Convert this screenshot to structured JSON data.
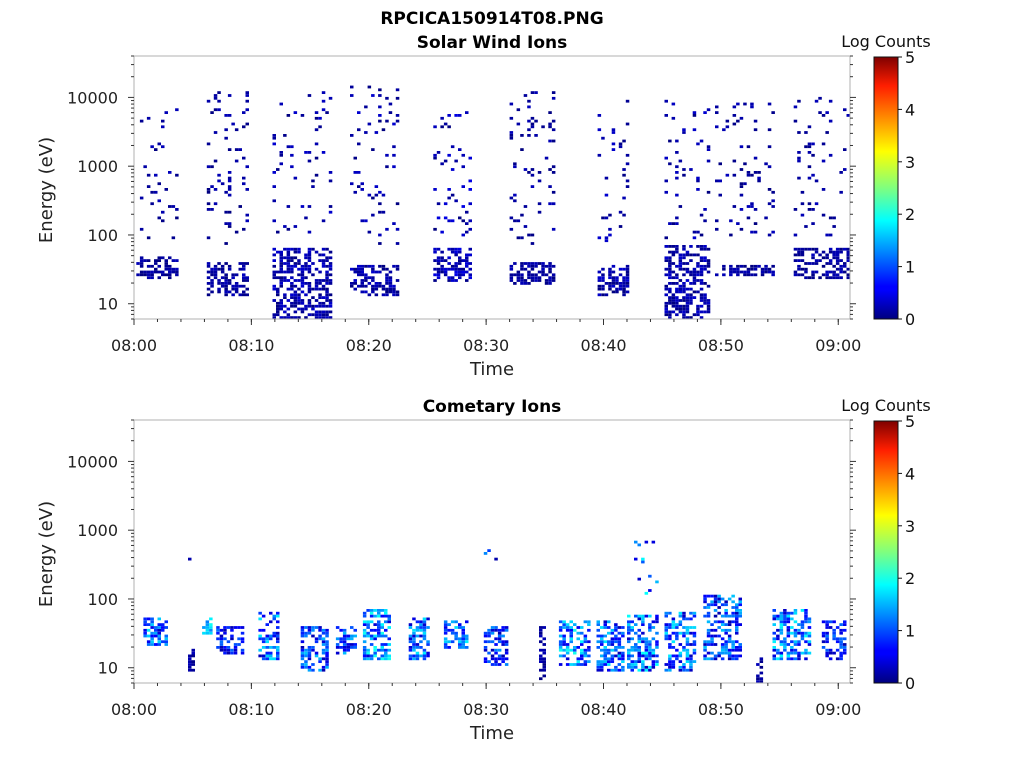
{
  "figure_title": "RPCICA150914T08.PNG",
  "chart_data": [
    {
      "type": "heatmap",
      "title": "Solar Wind Ions",
      "xlabel": "Time",
      "ylabel": "Energy (eV)",
      "x_ticks": [
        "08:00",
        "08:10",
        "08:20",
        "08:30",
        "08:40",
        "08:50",
        "09:00"
      ],
      "xlim_minutes": [
        0,
        61
      ],
      "y_scale": "log",
      "ylim": [
        6,
        40000
      ],
      "y_ticks": [
        10,
        100,
        1000,
        10000
      ],
      "y_tick_labels": [
        "10",
        "100",
        "1000",
        "10000"
      ],
      "colorbar": {
        "label": "Log Counts",
        "min": 0,
        "max": 5,
        "ticks": [
          "0",
          "1",
          "2",
          "3",
          "4",
          "5"
        ]
      },
      "grid": false,
      "bursts": [
        {
          "start_min": 0.2,
          "end_min": 3.5,
          "low_eV": [
            22,
            45
          ],
          "hi_eV": [
            80,
            7000
          ],
          "log_counts": [
            0.0,
            0.3
          ]
        },
        {
          "start_min": 6.2,
          "end_min": 9.8,
          "low_eV": [
            12,
            40
          ],
          "hi_eV": [
            70,
            12000
          ],
          "log_counts": [
            0.0,
            0.3
          ]
        },
        {
          "start_min": 11.8,
          "end_min": 16.8,
          "low_eV": [
            6,
            60
          ],
          "hi_eV": [
            100,
            12000
          ],
          "log_counts": [
            0.0,
            0.4
          ]
        },
        {
          "start_min": 18.4,
          "end_min": 22.4,
          "low_eV": [
            12,
            35
          ],
          "hi_eV": [
            70,
            15000
          ],
          "log_counts": [
            0.0,
            0.4
          ]
        },
        {
          "start_min": 25.5,
          "end_min": 28.8,
          "low_eV": [
            20,
            60
          ],
          "hi_eV": [
            80,
            6000
          ],
          "log_counts": [
            0.0,
            0.5
          ]
        },
        {
          "start_min": 32.0,
          "end_min": 35.7,
          "low_eV": [
            18,
            40
          ],
          "hi_eV": [
            70,
            12000
          ],
          "log_counts": [
            0.0,
            0.3
          ]
        },
        {
          "start_min": 39.5,
          "end_min": 42.0,
          "low_eV": [
            12,
            35
          ],
          "hi_eV": [
            70,
            10000
          ],
          "log_counts": [
            0.0,
            0.4
          ]
        },
        {
          "start_min": 45.2,
          "end_min": 48.8,
          "low_eV": [
            6,
            70
          ],
          "hi_eV": [
            80,
            9000
          ],
          "log_counts": [
            0.0,
            0.4
          ]
        },
        {
          "start_min": 49.5,
          "end_min": 54.4,
          "low_eV": [
            25,
            35
          ],
          "hi_eV": [
            90,
            8000
          ],
          "log_counts": [
            0.0,
            0.3
          ]
        },
        {
          "start_min": 56.2,
          "end_min": 60.8,
          "low_eV": [
            22,
            60
          ],
          "hi_eV": [
            90,
            10000
          ],
          "log_counts": [
            0.0,
            0.3
          ]
        }
      ]
    },
    {
      "type": "heatmap",
      "title": "Cometary Ions",
      "xlabel": "Time",
      "ylabel": "Energy (eV)",
      "x_ticks": [
        "08:00",
        "08:10",
        "08:20",
        "08:30",
        "08:40",
        "08:50",
        "09:00"
      ],
      "xlim_minutes": [
        0,
        61
      ],
      "y_scale": "log",
      "ylim": [
        6,
        40000
      ],
      "y_ticks": [
        10,
        100,
        1000,
        10000
      ],
      "y_tick_labels": [
        "10",
        "100",
        "1000",
        "10000"
      ],
      "colorbar": {
        "label": "Log Counts",
        "min": 0,
        "max": 5,
        "ticks": [
          "0",
          "1",
          "2",
          "3",
          "4",
          "5"
        ]
      },
      "grid": false,
      "bursts": [
        {
          "start_min": 0.8,
          "end_min": 2.8,
          "low_eV": [
            20,
            50
          ],
          "hi_eV": [
            0,
            0
          ],
          "log_counts": [
            0.3,
            1.8
          ]
        },
        {
          "start_min": 4.6,
          "end_min": 5.0,
          "low_eV": [
            8,
            20
          ],
          "hi_eV": [
            170,
            700
          ],
          "log_counts": [
            0.0,
            0.3
          ]
        },
        {
          "start_min": 5.8,
          "end_min": 6.4,
          "low_eV": [
            30,
            50
          ],
          "hi_eV": [
            0,
            0
          ],
          "log_counts": [
            1.2,
            2.0
          ]
        },
        {
          "start_min": 7.0,
          "end_min": 9.2,
          "low_eV": [
            15,
            40
          ],
          "hi_eV": [
            0,
            0
          ],
          "log_counts": [
            0.2,
            1.2
          ]
        },
        {
          "start_min": 10.6,
          "end_min": 12.4,
          "low_eV": [
            12,
            60
          ],
          "hi_eV": [
            0,
            0
          ],
          "log_counts": [
            0.3,
            1.8
          ]
        },
        {
          "start_min": 14.2,
          "end_min": 16.4,
          "low_eV": [
            8,
            40
          ],
          "hi_eV": [
            0,
            0
          ],
          "log_counts": [
            0.2,
            1.6
          ]
        },
        {
          "start_min": 17.2,
          "end_min": 19.0,
          "low_eV": [
            15,
            40
          ],
          "hi_eV": [
            140,
            140
          ],
          "log_counts": [
            0.3,
            1.6
          ]
        },
        {
          "start_min": 19.5,
          "end_min": 21.8,
          "low_eV": [
            12,
            70
          ],
          "hi_eV": [
            0,
            0
          ],
          "log_counts": [
            0.4,
            2.0
          ]
        },
        {
          "start_min": 23.4,
          "end_min": 25.0,
          "low_eV": [
            12,
            50
          ],
          "hi_eV": [
            250,
            300
          ],
          "log_counts": [
            0.3,
            1.8
          ]
        },
        {
          "start_min": 26.4,
          "end_min": 28.4,
          "low_eV": [
            18,
            45
          ],
          "hi_eV": [
            0,
            0
          ],
          "log_counts": [
            0.5,
            1.9
          ]
        },
        {
          "start_min": 29.8,
          "end_min": 31.7,
          "low_eV": [
            10,
            40
          ],
          "hi_eV": [
            300,
            550
          ],
          "log_counts": [
            0.2,
            1.4
          ]
        },
        {
          "start_min": 34.5,
          "end_min": 34.8,
          "low_eV": [
            6,
            40
          ],
          "hi_eV": [
            0,
            0
          ],
          "log_counts": [
            0.0,
            0.3
          ]
        },
        {
          "start_min": 36.2,
          "end_min": 38.8,
          "low_eV": [
            10,
            45
          ],
          "hi_eV": [
            350,
            350
          ],
          "log_counts": [
            0.4,
            2.0
          ]
        },
        {
          "start_min": 39.4,
          "end_min": 41.6,
          "low_eV": [
            8,
            45
          ],
          "hi_eV": [
            0,
            0
          ],
          "log_counts": [
            0.3,
            1.8
          ]
        },
        {
          "start_min": 42.0,
          "end_min": 44.6,
          "low_eV": [
            8,
            55
          ],
          "hi_eV": [
            90,
            700
          ],
          "log_counts": [
            0.3,
            1.9
          ]
        },
        {
          "start_min": 45.2,
          "end_min": 47.8,
          "low_eV": [
            8,
            60
          ],
          "hi_eV": [
            100,
            100
          ],
          "log_counts": [
            0.3,
            1.8
          ]
        },
        {
          "start_min": 48.5,
          "end_min": 51.6,
          "low_eV": [
            12,
            110
          ],
          "hi_eV": [
            150,
            150
          ],
          "log_counts": [
            0.2,
            1.6
          ]
        },
        {
          "start_min": 53.0,
          "end_min": 53.3,
          "low_eV": [
            6,
            15
          ],
          "hi_eV": [
            250,
            250
          ],
          "log_counts": [
            0.0,
            0.3
          ]
        },
        {
          "start_min": 54.4,
          "end_min": 57.4,
          "low_eV": [
            12,
            70
          ],
          "hi_eV": [
            250,
            250
          ],
          "log_counts": [
            0.3,
            1.9
          ]
        },
        {
          "start_min": 58.6,
          "end_min": 60.4,
          "low_eV": [
            12,
            45
          ],
          "hi_eV": [
            0,
            0
          ],
          "log_counts": [
            0.2,
            1.2
          ]
        }
      ]
    }
  ]
}
